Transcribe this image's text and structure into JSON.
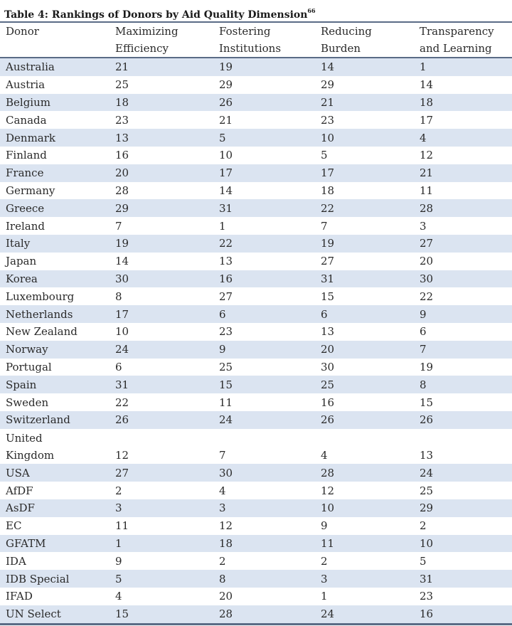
{
  "title": "Table 4: Rankings of Donors by Aid Quality Dimension",
  "title_footnote": "66",
  "headers": {
    "donor": "Donor",
    "col1": [
      "Maximizing",
      "Efficiency"
    ],
    "col2": [
      "Fostering",
      "Institutions"
    ],
    "col3": [
      "Reducing",
      "Burden"
    ],
    "col4": [
      "Transparency",
      "and Learning"
    ]
  },
  "rows": [
    [
      "Australia",
      "21",
      "19",
      "14",
      "1"
    ],
    [
      "Austria",
      "25",
      "29",
      "29",
      "14"
    ],
    [
      "Belgium",
      "18",
      "26",
      "21",
      "18"
    ],
    [
      "Canada",
      "23",
      "21",
      "23",
      "17"
    ],
    [
      "Denmark",
      "13",
      "5",
      "10",
      "4"
    ],
    [
      "Finland",
      "16",
      "10",
      "5",
      "12"
    ],
    [
      "France",
      "20",
      "17",
      "17",
      "21"
    ],
    [
      "Germany",
      "28",
      "14",
      "18",
      "11"
    ],
    [
      "Greece",
      "29",
      "31",
      "22",
      "28"
    ],
    [
      "Ireland",
      "7",
      "1",
      "7",
      "3"
    ],
    [
      "Italy",
      "19",
      "22",
      "19",
      "27"
    ],
    [
      "Japan",
      "14",
      "13",
      "27",
      "20"
    ],
    [
      "Korea",
      "30",
      "16",
      "31",
      "30"
    ],
    [
      "Luxembourg",
      "8",
      "27",
      "15",
      "22"
    ],
    [
      "Netherlands",
      "17",
      "6",
      "6",
      "9"
    ],
    [
      "New Zealand",
      "10",
      "23",
      "13",
      "6"
    ],
    [
      "Norway",
      "24",
      "9",
      "20",
      "7"
    ],
    [
      "Portugal",
      "6",
      "25",
      "30",
      "19"
    ],
    [
      "Spain",
      "31",
      "15",
      "25",
      "8"
    ],
    [
      "Sweden",
      "22",
      "11",
      "16",
      "15"
    ],
    [
      "Switzerland",
      "26",
      "24",
      "26",
      "26"
    ],
    [
      "United Kingdom",
      "12",
      "7",
      "4",
      "13"
    ],
    [
      "USA",
      "27",
      "30",
      "28",
      "24"
    ],
    [
      "AfDF",
      "2",
      "4",
      "12",
      "25"
    ],
    [
      "AsDF",
      "3",
      "3",
      "10",
      "29"
    ],
    [
      "EC",
      "11",
      "12",
      "9",
      "2"
    ],
    [
      "GFATM",
      "1",
      "18",
      "11",
      "10"
    ],
    [
      "IDA",
      "9",
      "2",
      "2",
      "5"
    ],
    [
      "IDB Special",
      "5",
      "8",
      "3",
      "31"
    ],
    [
      "IFAD",
      "4",
      "20",
      "1",
      "23"
    ],
    [
      "UN Select",
      "15",
      "28",
      "24",
      "16"
    ]
  ],
  "colors": {
    "stripe": "#dbe4f1",
    "rule": "#5a6b86",
    "text": "#2a2a2a"
  }
}
